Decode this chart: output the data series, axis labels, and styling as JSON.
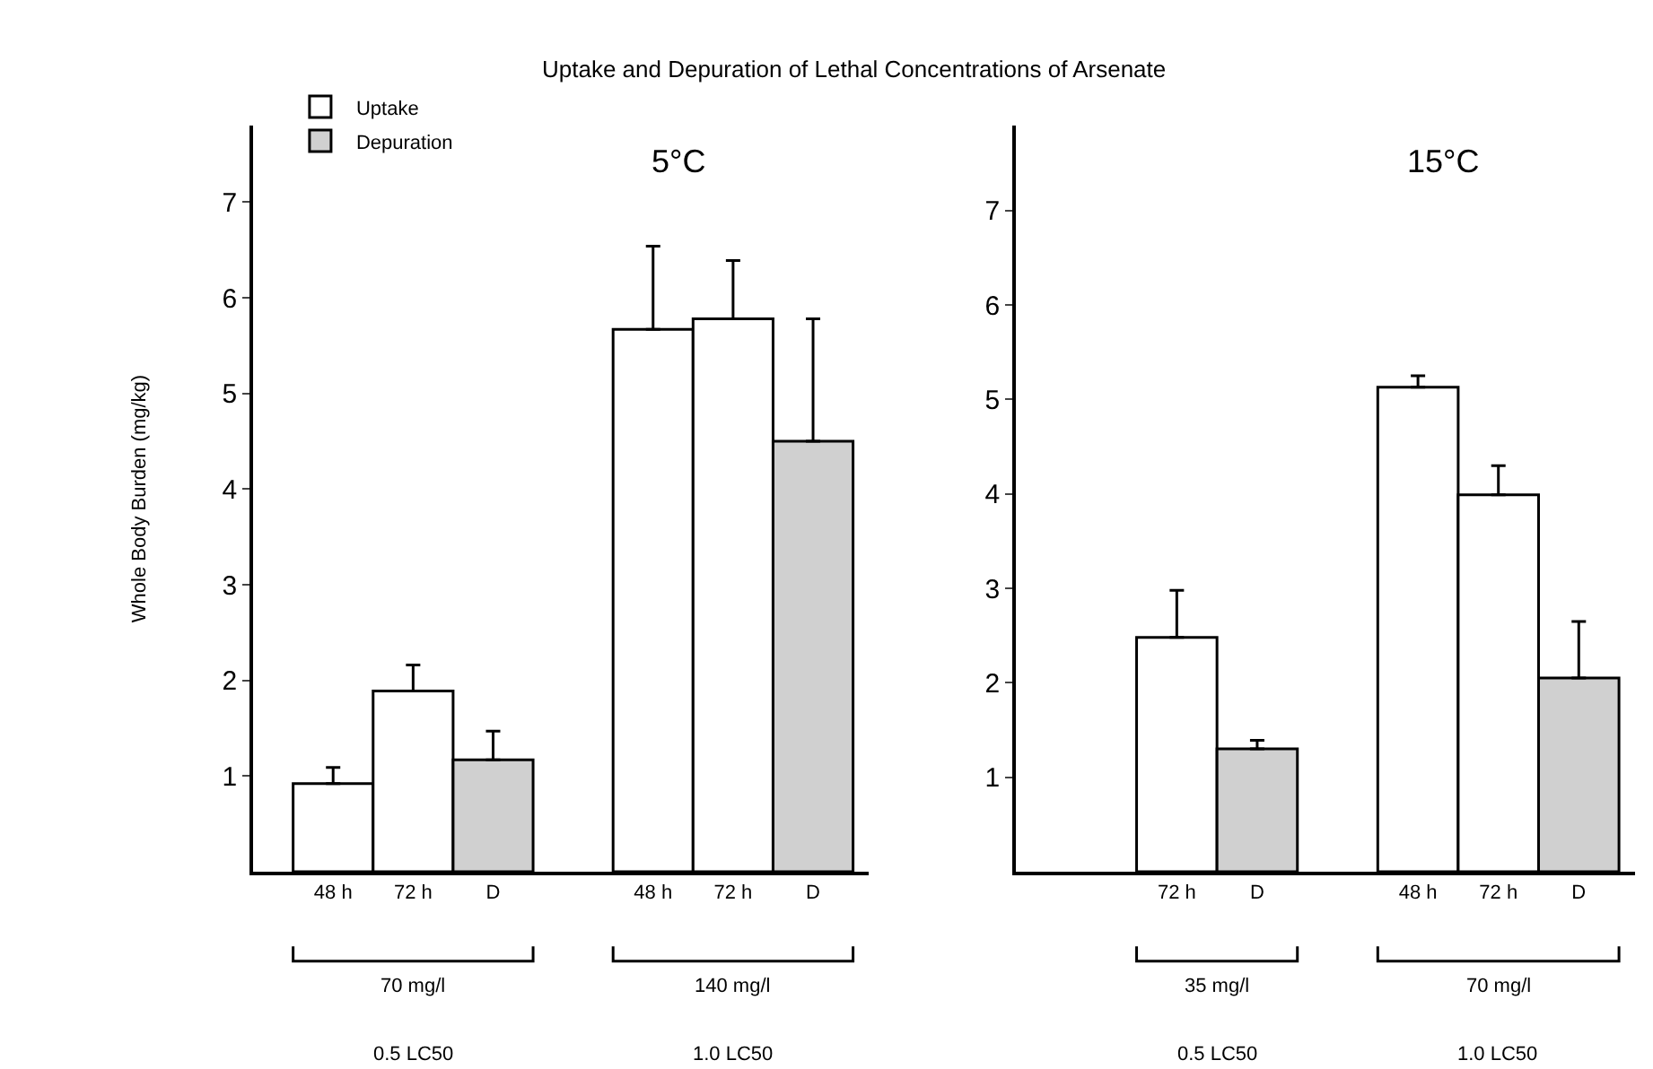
{
  "chart_data": [
    {
      "type": "bar",
      "title": "Uptake and Depuration of Lethal Concentrations of Arsenate",
      "subtitle": "5°C",
      "ylabel": "Whole Body Burden (mg/kg)",
      "categories": [
        "48 h",
        "72 h",
        "D",
        null,
        "48 h",
        "72 h",
        "D"
      ],
      "series": [
        {
          "name": "Uptake",
          "color": "#ffffff",
          "values": [
            0.92,
            1.89,
            null,
            null,
            5.67,
            5.78,
            null
          ],
          "errors": [
            [
              0.92,
              1.09
            ],
            [
              1.89,
              2.16
            ],
            null,
            null,
            [
              5.67,
              6.54
            ],
            [
              5.78,
              6.39
            ],
            null
          ]
        },
        {
          "name": "Depuration",
          "color": "#d0d0d0",
          "values": [
            null,
            null,
            1.17,
            null,
            null,
            null,
            4.5
          ],
          "errors": [
            null,
            null,
            [
              1.17,
              1.47
            ],
            null,
            null,
            null,
            [
              4.5,
              5.78
            ]
          ]
        }
      ],
      "annotations": [
        "70 mg/l",
        "0.5 LC50",
        "140 mg/l",
        "1.0 LC50"
      ],
      "ylim": [
        0,
        7.8
      ],
      "yticks": [
        1,
        2,
        3,
        4,
        5,
        6,
        7
      ],
      "legend": "top left"
    },
    {
      "type": "bar",
      "subtitle": "15°C",
      "categories": [
        null,
        "72 h",
        "D",
        null,
        "48 h",
        "72 h",
        "D"
      ],
      "series": [
        {
          "color": "#ffffff",
          "values": [
            null,
            2.48,
            null,
            null,
            5.13,
            3.99,
            null
          ],
          "errors": [
            null,
            [
              2.48,
              2.98
            ],
            null,
            null,
            [
              5.13,
              5.25
            ],
            [
              3.99,
              4.3
            ],
            null
          ]
        },
        {
          "color": "#d0d0d0",
          "values": [
            null,
            null,
            1.3,
            null,
            null,
            null,
            2.05
          ],
          "errors": [
            null,
            null,
            [
              1.3,
              1.39
            ],
            null,
            null,
            null,
            [
              2.05,
              2.65
            ]
          ]
        }
      ],
      "annotations": [
        "35 mg/l",
        "0.5 LC50",
        "70 mg/l",
        "1.0 LC50"
      ],
      "ylim": [
        0,
        7.9
      ],
      "yticks": [
        1,
        2,
        3,
        4,
        5,
        6,
        7
      ]
    }
  ]
}
